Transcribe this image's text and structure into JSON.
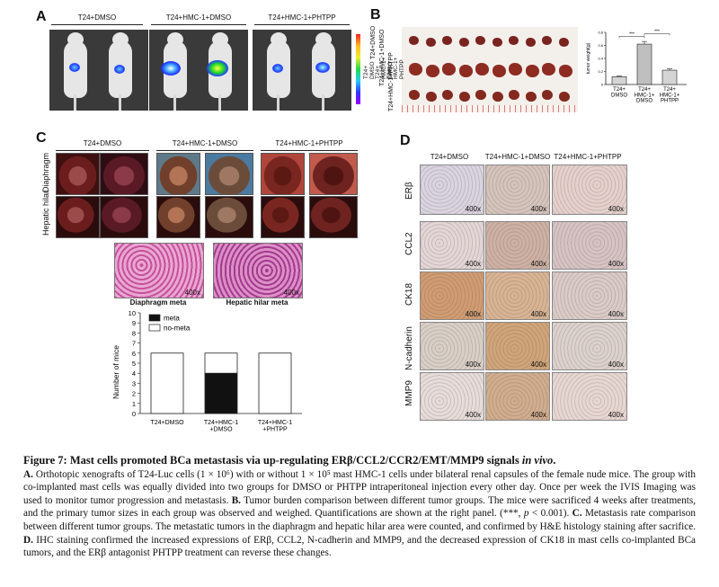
{
  "panels": {
    "A": {
      "letter": "A",
      "groups": [
        "T24+DMSO",
        "T24+HMC-1+DMSO",
        "T24+HMC-1+PHTPP"
      ],
      "colorbar_labels": [
        "T24+\nDMSO",
        "T24+\nHMC-1+\nDMSO",
        "T24+\nHMC-1+\nPHTPP"
      ]
    },
    "B": {
      "letter": "B",
      "row_labels": [
        "T24+DMSO",
        "T24+HMC-1+DMSO",
        "T24+HMC-1+PHTPP"
      ],
      "ylabel": "tumor weight(g)",
      "significance": [
        "***",
        "***"
      ],
      "categories": [
        "T24+\nDMSO",
        "T24+\nHMC-1+\nDMSO",
        "T24+\nHMC-1+\nPHTPP"
      ]
    },
    "C": {
      "letter": "C",
      "groups": [
        "T24+DMSO",
        "T24+HMC-1+DMSO",
        "T24+HMC-1+PHTPP"
      ],
      "row_labels": [
        "Diaphragm",
        "Hepatic hilar"
      ],
      "he_labels": [
        "Diaphragm meta",
        "Hepatic hilar meta"
      ],
      "he_mag": "400x"
    },
    "D": {
      "letter": "D",
      "groups": [
        "T24+DMSO",
        "T24+HMC-1+DMSO",
        "T24+HMC-1+PHTPP"
      ],
      "markers": [
        "ERβ",
        "CCL2",
        "CK18",
        "N-cadherin",
        "MMP9"
      ],
      "mag": "400x"
    }
  },
  "chart_data": [
    {
      "type": "bar",
      "id": "tumor-weight",
      "categories": [
        "T24+DMSO",
        "T24+HMC-1+DMSO",
        "T24+HMC-1+PHTPP"
      ],
      "values": [
        0.12,
        0.62,
        0.22
      ],
      "errors": [
        0.01,
        0.04,
        0.02
      ],
      "ylabel": "tumor weight(g)",
      "ylim": [
        0,
        0.8
      ],
      "yticks": [
        0,
        0.2,
        0.4,
        0.6,
        0.8
      ]
    },
    {
      "type": "bar",
      "stacked": true,
      "id": "metastasis",
      "categories": [
        "T24+DMSO",
        "T24+HMC-1\n+DMSO",
        "T24+HMC-1\n+PHTPP"
      ],
      "series": [
        {
          "name": "meta",
          "values": [
            0,
            4,
            0
          ],
          "color": "#111111"
        },
        {
          "name": "no-meta",
          "values": [
            6,
            2,
            6
          ],
          "color": "#ffffff"
        }
      ],
      "ylabel": "Number of mice",
      "ylim": [
        0,
        10
      ],
      "yticks": [
        0,
        1,
        2,
        3,
        4,
        5,
        6,
        7,
        8,
        9,
        10
      ],
      "legend": "top-left"
    }
  ],
  "caption": {
    "title_a": "Figure 7: Mast cells promoted BCa metastasis via up-regulating ERβ/CCL2/CCR2/EMT/MMP9 signals ",
    "title_b": "in vivo",
    "title_c": ".",
    "A_head": "A.",
    "A_text": " Orthotopic xenografts of T24-Luc cells (1 × 10⁶) with or without 1 × 10⁵ mast HMC-1 cells under bilateral renal capsules of the female nude mice. The group with co-implanted mast cells was equally divided into two groups for DMSO or PHTPP intraperitoneal injection every other day. Once per week the IVIS Imaging was used to monitor tumor progression and metastasis. ",
    "B_head": "B.",
    "B_text": " Tumor burden comparison between different tumor groups. The mice were sacrificed 4 weeks after treatments, and the primary tumor sizes in each group was observed and weighed. Quantifications are shown at the right panel. (***, ",
    "p_text": "p",
    "B_text2": " < 0.001). ",
    "C_head": "C.",
    "C_text": " Metastasis rate comparison between different tumor groups. The metastatic tumors in the diaphragm and hepatic hilar area were counted, and confirmed by H&E histology staining after sacrifice. ",
    "D_head": "D.",
    "D_text": " IHC staining confirmed the increased expressions of ERβ, CCL2, N-cadherin and MMP9, and the decreased expression of CK18 in mast cells co-implanted BCa tumors, and the ERβ antagonist PHTPP treatment can reverse these changes."
  }
}
